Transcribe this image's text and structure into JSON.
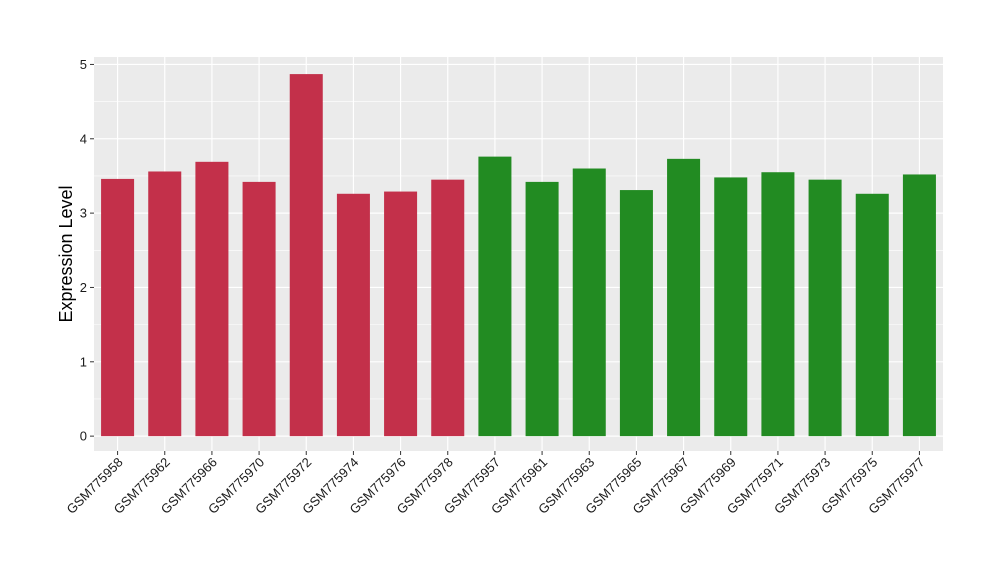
{
  "chart_data": {
    "type": "bar",
    "title": "",
    "xlabel": "",
    "ylabel": "Expression Level",
    "ylim": [
      -0.2,
      5.1
    ],
    "yticks": [
      0,
      1,
      2,
      3,
      4,
      5
    ],
    "grid": true,
    "legend": "none",
    "categories": [
      "GSM775958",
      "GSM775962",
      "GSM775966",
      "GSM775970",
      "GSM775972",
      "GSM775974",
      "GSM775976",
      "GSM775978",
      "GSM775957",
      "GSM775961",
      "GSM775963",
      "GSM775965",
      "GSM775967",
      "GSM775969",
      "GSM775971",
      "GSM775973",
      "GSM775975",
      "GSM775977"
    ],
    "values": [
      3.46,
      3.56,
      3.69,
      3.42,
      4.87,
      3.26,
      3.29,
      3.45,
      3.76,
      3.42,
      3.6,
      3.31,
      3.73,
      3.48,
      3.55,
      3.45,
      3.26,
      3.52
    ],
    "bar_colors": [
      "#c3304a",
      "#c3304a",
      "#c3304a",
      "#c3304a",
      "#c3304a",
      "#c3304a",
      "#c3304a",
      "#c3304a",
      "#228b22",
      "#228b22",
      "#228b22",
      "#228b22",
      "#228b22",
      "#228b22",
      "#228b22",
      "#228b22",
      "#228b22",
      "#228b22"
    ]
  },
  "colors": {
    "panel_background": "#ebebeb",
    "grid": "#ffffff",
    "group_a": "#c3304a",
    "group_b": "#228b22"
  }
}
